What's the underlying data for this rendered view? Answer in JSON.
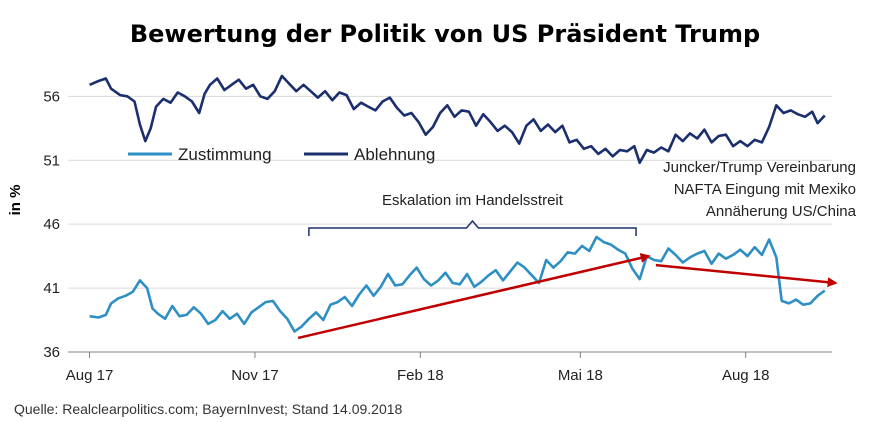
{
  "chart_data": {
    "type": "line",
    "title": "Bewertung der Politik von US Präsident Trump",
    "ylabel": "in %",
    "xlabel": "",
    "ylim": [
      36,
      59
    ],
    "yticks": [
      36,
      41,
      46,
      51,
      56
    ],
    "x_ticks": [
      {
        "label": "Aug 17",
        "date": "2017-08-01"
      },
      {
        "label": "Nov 17",
        "date": "2017-11-01"
      },
      {
        "label": "Feb 18",
        "date": "2018-02-01"
      },
      {
        "label": "Mai 18",
        "date": "2018-05-01"
      },
      {
        "label": "Aug 18",
        "date": "2018-08-01"
      }
    ],
    "grid": "horizontal",
    "legend": "top-left",
    "series": [
      {
        "name": "Ablehnung",
        "color": "#1b2f6e",
        "points": [
          [
            "2017-08-01",
            56.9
          ],
          [
            "2017-08-06",
            57.2
          ],
          [
            "2017-08-10",
            57.4
          ],
          [
            "2017-08-13",
            56.6
          ],
          [
            "2017-08-18",
            56.1
          ],
          [
            "2017-08-22",
            56.0
          ],
          [
            "2017-08-26",
            55.6
          ],
          [
            "2017-08-29",
            53.8
          ],
          [
            "2017-09-01",
            52.5
          ],
          [
            "2017-09-04",
            53.5
          ],
          [
            "2017-09-07",
            55.2
          ],
          [
            "2017-09-11",
            55.8
          ],
          [
            "2017-09-15",
            55.5
          ],
          [
            "2017-09-19",
            56.3
          ],
          [
            "2017-09-23",
            56.0
          ],
          [
            "2017-09-27",
            55.6
          ],
          [
            "2017-10-01",
            54.7
          ],
          [
            "2017-10-04",
            56.2
          ],
          [
            "2017-10-07",
            56.9
          ],
          [
            "2017-10-11",
            57.4
          ],
          [
            "2017-10-15",
            56.5
          ],
          [
            "2017-10-19",
            56.9
          ],
          [
            "2017-10-23",
            57.3
          ],
          [
            "2017-10-27",
            56.6
          ],
          [
            "2017-10-31",
            56.9
          ],
          [
            "2017-11-04",
            56.0
          ],
          [
            "2017-11-08",
            55.8
          ],
          [
            "2017-11-12",
            56.4
          ],
          [
            "2017-11-16",
            57.6
          ],
          [
            "2017-11-20",
            57.0
          ],
          [
            "2017-11-24",
            56.4
          ],
          [
            "2017-11-28",
            56.9
          ],
          [
            "2017-12-02",
            56.4
          ],
          [
            "2017-12-06",
            55.9
          ],
          [
            "2017-12-10",
            56.4
          ],
          [
            "2017-12-14",
            55.7
          ],
          [
            "2017-12-18",
            56.3
          ],
          [
            "2017-12-22",
            56.1
          ],
          [
            "2017-12-26",
            55.0
          ],
          [
            "2017-12-30",
            55.5
          ],
          [
            "2018-01-03",
            55.2
          ],
          [
            "2018-01-07",
            54.9
          ],
          [
            "2018-01-11",
            55.6
          ],
          [
            "2018-01-15",
            55.9
          ],
          [
            "2018-01-19",
            55.1
          ],
          [
            "2018-01-23",
            54.5
          ],
          [
            "2018-01-27",
            54.7
          ],
          [
            "2018-01-31",
            54.0
          ],
          [
            "2018-02-04",
            53.0
          ],
          [
            "2018-02-08",
            53.6
          ],
          [
            "2018-02-12",
            54.7
          ],
          [
            "2018-02-16",
            55.3
          ],
          [
            "2018-02-20",
            54.4
          ],
          [
            "2018-02-24",
            54.9
          ],
          [
            "2018-02-28",
            54.8
          ],
          [
            "2018-03-04",
            53.7
          ],
          [
            "2018-03-08",
            54.6
          ],
          [
            "2018-03-12",
            54.0
          ],
          [
            "2018-03-16",
            53.3
          ],
          [
            "2018-03-20",
            53.7
          ],
          [
            "2018-03-24",
            53.2
          ],
          [
            "2018-03-28",
            52.3
          ],
          [
            "2018-04-01",
            53.7
          ],
          [
            "2018-04-05",
            54.2
          ],
          [
            "2018-04-09",
            53.3
          ],
          [
            "2018-04-13",
            53.8
          ],
          [
            "2018-04-17",
            53.2
          ],
          [
            "2018-04-21",
            53.7
          ],
          [
            "2018-04-25",
            52.4
          ],
          [
            "2018-04-29",
            52.6
          ],
          [
            "2018-05-03",
            51.9
          ],
          [
            "2018-05-07",
            52.1
          ],
          [
            "2018-05-11",
            51.5
          ],
          [
            "2018-05-15",
            51.9
          ],
          [
            "2018-05-19",
            51.3
          ],
          [
            "2018-05-23",
            51.8
          ],
          [
            "2018-05-27",
            51.7
          ],
          [
            "2018-05-31",
            52.1
          ],
          [
            "2018-06-03",
            50.8
          ],
          [
            "2018-06-07",
            51.8
          ],
          [
            "2018-06-11",
            51.6
          ],
          [
            "2018-06-15",
            52.0
          ],
          [
            "2018-06-19",
            51.7
          ],
          [
            "2018-06-23",
            53.0
          ],
          [
            "2018-06-27",
            52.5
          ],
          [
            "2018-07-01",
            53.1
          ],
          [
            "2018-07-05",
            52.7
          ],
          [
            "2018-07-09",
            53.4
          ],
          [
            "2018-07-13",
            52.4
          ],
          [
            "2018-07-17",
            52.9
          ],
          [
            "2018-07-21",
            53.0
          ],
          [
            "2018-07-25",
            52.1
          ],
          [
            "2018-07-29",
            52.5
          ],
          [
            "2018-08-02",
            52.1
          ],
          [
            "2018-08-06",
            52.6
          ],
          [
            "2018-08-10",
            52.4
          ],
          [
            "2018-08-14",
            53.6
          ],
          [
            "2018-08-18",
            55.3
          ],
          [
            "2018-08-22",
            54.7
          ],
          [
            "2018-08-26",
            54.9
          ],
          [
            "2018-08-30",
            54.6
          ],
          [
            "2018-09-03",
            54.4
          ],
          [
            "2018-09-07",
            54.8
          ],
          [
            "2018-09-10",
            53.9
          ],
          [
            "2018-09-14",
            54.5
          ]
        ]
      },
      {
        "name": "Zustimmung",
        "color": "#2e8fc4",
        "points": [
          [
            "2017-08-01",
            38.8
          ],
          [
            "2017-08-06",
            38.7
          ],
          [
            "2017-08-10",
            38.9
          ],
          [
            "2017-08-13",
            39.8
          ],
          [
            "2017-08-17",
            40.2
          ],
          [
            "2017-08-21",
            40.4
          ],
          [
            "2017-08-25",
            40.7
          ],
          [
            "2017-08-29",
            41.6
          ],
          [
            "2017-09-02",
            41.0
          ],
          [
            "2017-09-05",
            39.4
          ],
          [
            "2017-09-08",
            39.0
          ],
          [
            "2017-09-12",
            38.6
          ],
          [
            "2017-09-16",
            39.6
          ],
          [
            "2017-09-20",
            38.8
          ],
          [
            "2017-09-24",
            38.9
          ],
          [
            "2017-09-28",
            39.5
          ],
          [
            "2017-10-02",
            39.0
          ],
          [
            "2017-10-06",
            38.2
          ],
          [
            "2017-10-10",
            38.5
          ],
          [
            "2017-10-14",
            39.2
          ],
          [
            "2017-10-18",
            38.6
          ],
          [
            "2017-10-22",
            39.0
          ],
          [
            "2017-10-26",
            38.2
          ],
          [
            "2017-10-30",
            39.1
          ],
          [
            "2017-11-03",
            39.5
          ],
          [
            "2017-11-07",
            39.9
          ],
          [
            "2017-11-11",
            40.0
          ],
          [
            "2017-11-15",
            39.2
          ],
          [
            "2017-11-19",
            38.6
          ],
          [
            "2017-11-23",
            37.6
          ],
          [
            "2017-11-27",
            38.0
          ],
          [
            "2017-12-01",
            38.6
          ],
          [
            "2017-12-05",
            39.1
          ],
          [
            "2017-12-09",
            38.5
          ],
          [
            "2017-12-13",
            39.7
          ],
          [
            "2017-12-17",
            39.9
          ],
          [
            "2017-12-21",
            40.3
          ],
          [
            "2017-12-25",
            39.6
          ],
          [
            "2017-12-29",
            40.5
          ],
          [
            "2018-01-02",
            41.2
          ],
          [
            "2018-01-06",
            40.4
          ],
          [
            "2018-01-10",
            41.1
          ],
          [
            "2018-01-14",
            42.1
          ],
          [
            "2018-01-18",
            41.2
          ],
          [
            "2018-01-22",
            41.3
          ],
          [
            "2018-01-26",
            42.0
          ],
          [
            "2018-01-30",
            42.6
          ],
          [
            "2018-02-03",
            41.7
          ],
          [
            "2018-02-07",
            41.2
          ],
          [
            "2018-02-11",
            41.6
          ],
          [
            "2018-02-15",
            42.2
          ],
          [
            "2018-02-19",
            41.4
          ],
          [
            "2018-02-23",
            41.3
          ],
          [
            "2018-02-27",
            42.1
          ],
          [
            "2018-03-03",
            41.1
          ],
          [
            "2018-03-07",
            41.5
          ],
          [
            "2018-03-11",
            42.0
          ],
          [
            "2018-03-15",
            42.4
          ],
          [
            "2018-03-19",
            41.6
          ],
          [
            "2018-03-23",
            42.3
          ],
          [
            "2018-03-27",
            43.0
          ],
          [
            "2018-03-31",
            42.6
          ],
          [
            "2018-04-04",
            42.0
          ],
          [
            "2018-04-08",
            41.4
          ],
          [
            "2018-04-12",
            43.2
          ],
          [
            "2018-04-16",
            42.6
          ],
          [
            "2018-04-20",
            43.1
          ],
          [
            "2018-04-24",
            43.8
          ],
          [
            "2018-04-28",
            43.7
          ],
          [
            "2018-05-02",
            44.3
          ],
          [
            "2018-05-06",
            43.9
          ],
          [
            "2018-05-10",
            45.0
          ],
          [
            "2018-05-14",
            44.6
          ],
          [
            "2018-05-18",
            44.4
          ],
          [
            "2018-05-22",
            44.0
          ],
          [
            "2018-05-26",
            43.7
          ],
          [
            "2018-05-30",
            42.5
          ],
          [
            "2018-06-03",
            41.7
          ],
          [
            "2018-06-07",
            43.5
          ],
          [
            "2018-06-11",
            43.2
          ],
          [
            "2018-06-15",
            43.1
          ],
          [
            "2018-06-19",
            44.1
          ],
          [
            "2018-06-23",
            43.6
          ],
          [
            "2018-06-27",
            43.0
          ],
          [
            "2018-07-01",
            43.4
          ],
          [
            "2018-07-05",
            43.7
          ],
          [
            "2018-07-09",
            43.9
          ],
          [
            "2018-07-13",
            42.9
          ],
          [
            "2018-07-17",
            43.7
          ],
          [
            "2018-07-21",
            43.3
          ],
          [
            "2018-07-25",
            43.6
          ],
          [
            "2018-07-29",
            44.0
          ],
          [
            "2018-08-02",
            43.5
          ],
          [
            "2018-08-06",
            44.2
          ],
          [
            "2018-08-10",
            43.6
          ],
          [
            "2018-08-14",
            44.8
          ],
          [
            "2018-08-18",
            43.4
          ],
          [
            "2018-08-21",
            40.0
          ],
          [
            "2018-08-25",
            39.8
          ],
          [
            "2018-08-29",
            40.1
          ],
          [
            "2018-09-02",
            39.7
          ],
          [
            "2018-09-06",
            39.8
          ],
          [
            "2018-09-10",
            40.4
          ],
          [
            "2018-09-14",
            40.8
          ]
        ]
      }
    ],
    "annotations": {
      "bracket_label": "Eskalation im Handelsstreit",
      "bracket_range": [
        "2017-12-01",
        "2018-06-01"
      ],
      "notes": [
        "Juncker/Trump Vereinbarung",
        "NAFTA Eingung mit Mexiko",
        "Annäherung US/China"
      ],
      "trend_arrows": [
        {
          "from": [
            "2017-11-25",
            37.1
          ],
          "to": [
            "2018-06-08",
            43.5
          ],
          "color": "#c00000"
        },
        {
          "from": [
            "2018-06-12",
            42.8
          ],
          "to": [
            "2018-09-20",
            41.4
          ],
          "color": "#c00000"
        }
      ]
    },
    "source": "Quelle: Realclearpolitics.com; BayernInvest; Stand 14.09.2018"
  }
}
